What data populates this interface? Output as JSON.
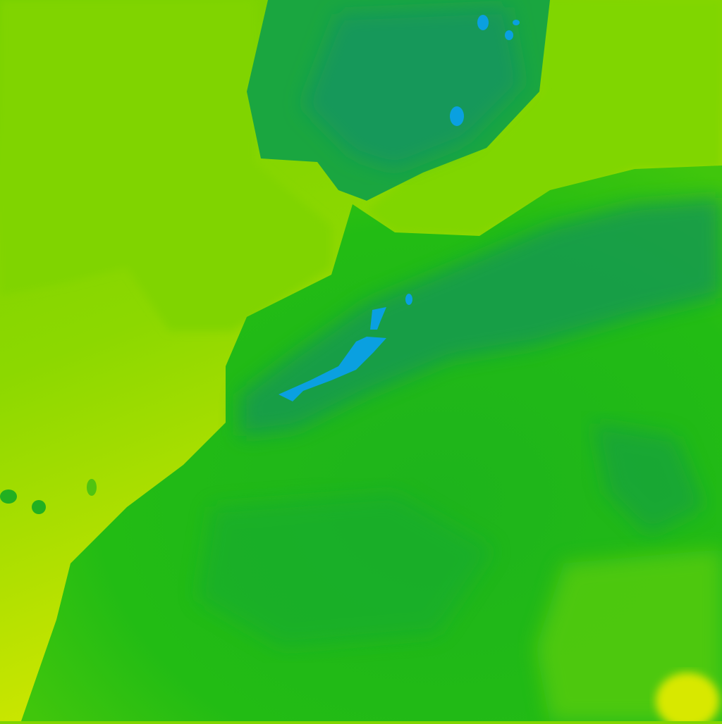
{
  "map": {
    "palette": {
      "yellow": "#dcea00",
      "yellow_green": "#b0e000",
      "light_green": "#80d400",
      "green": "#20bc14",
      "dark_green": "#18a83a",
      "teal": "#149a60",
      "blue": "#0aa0e0"
    }
  }
}
